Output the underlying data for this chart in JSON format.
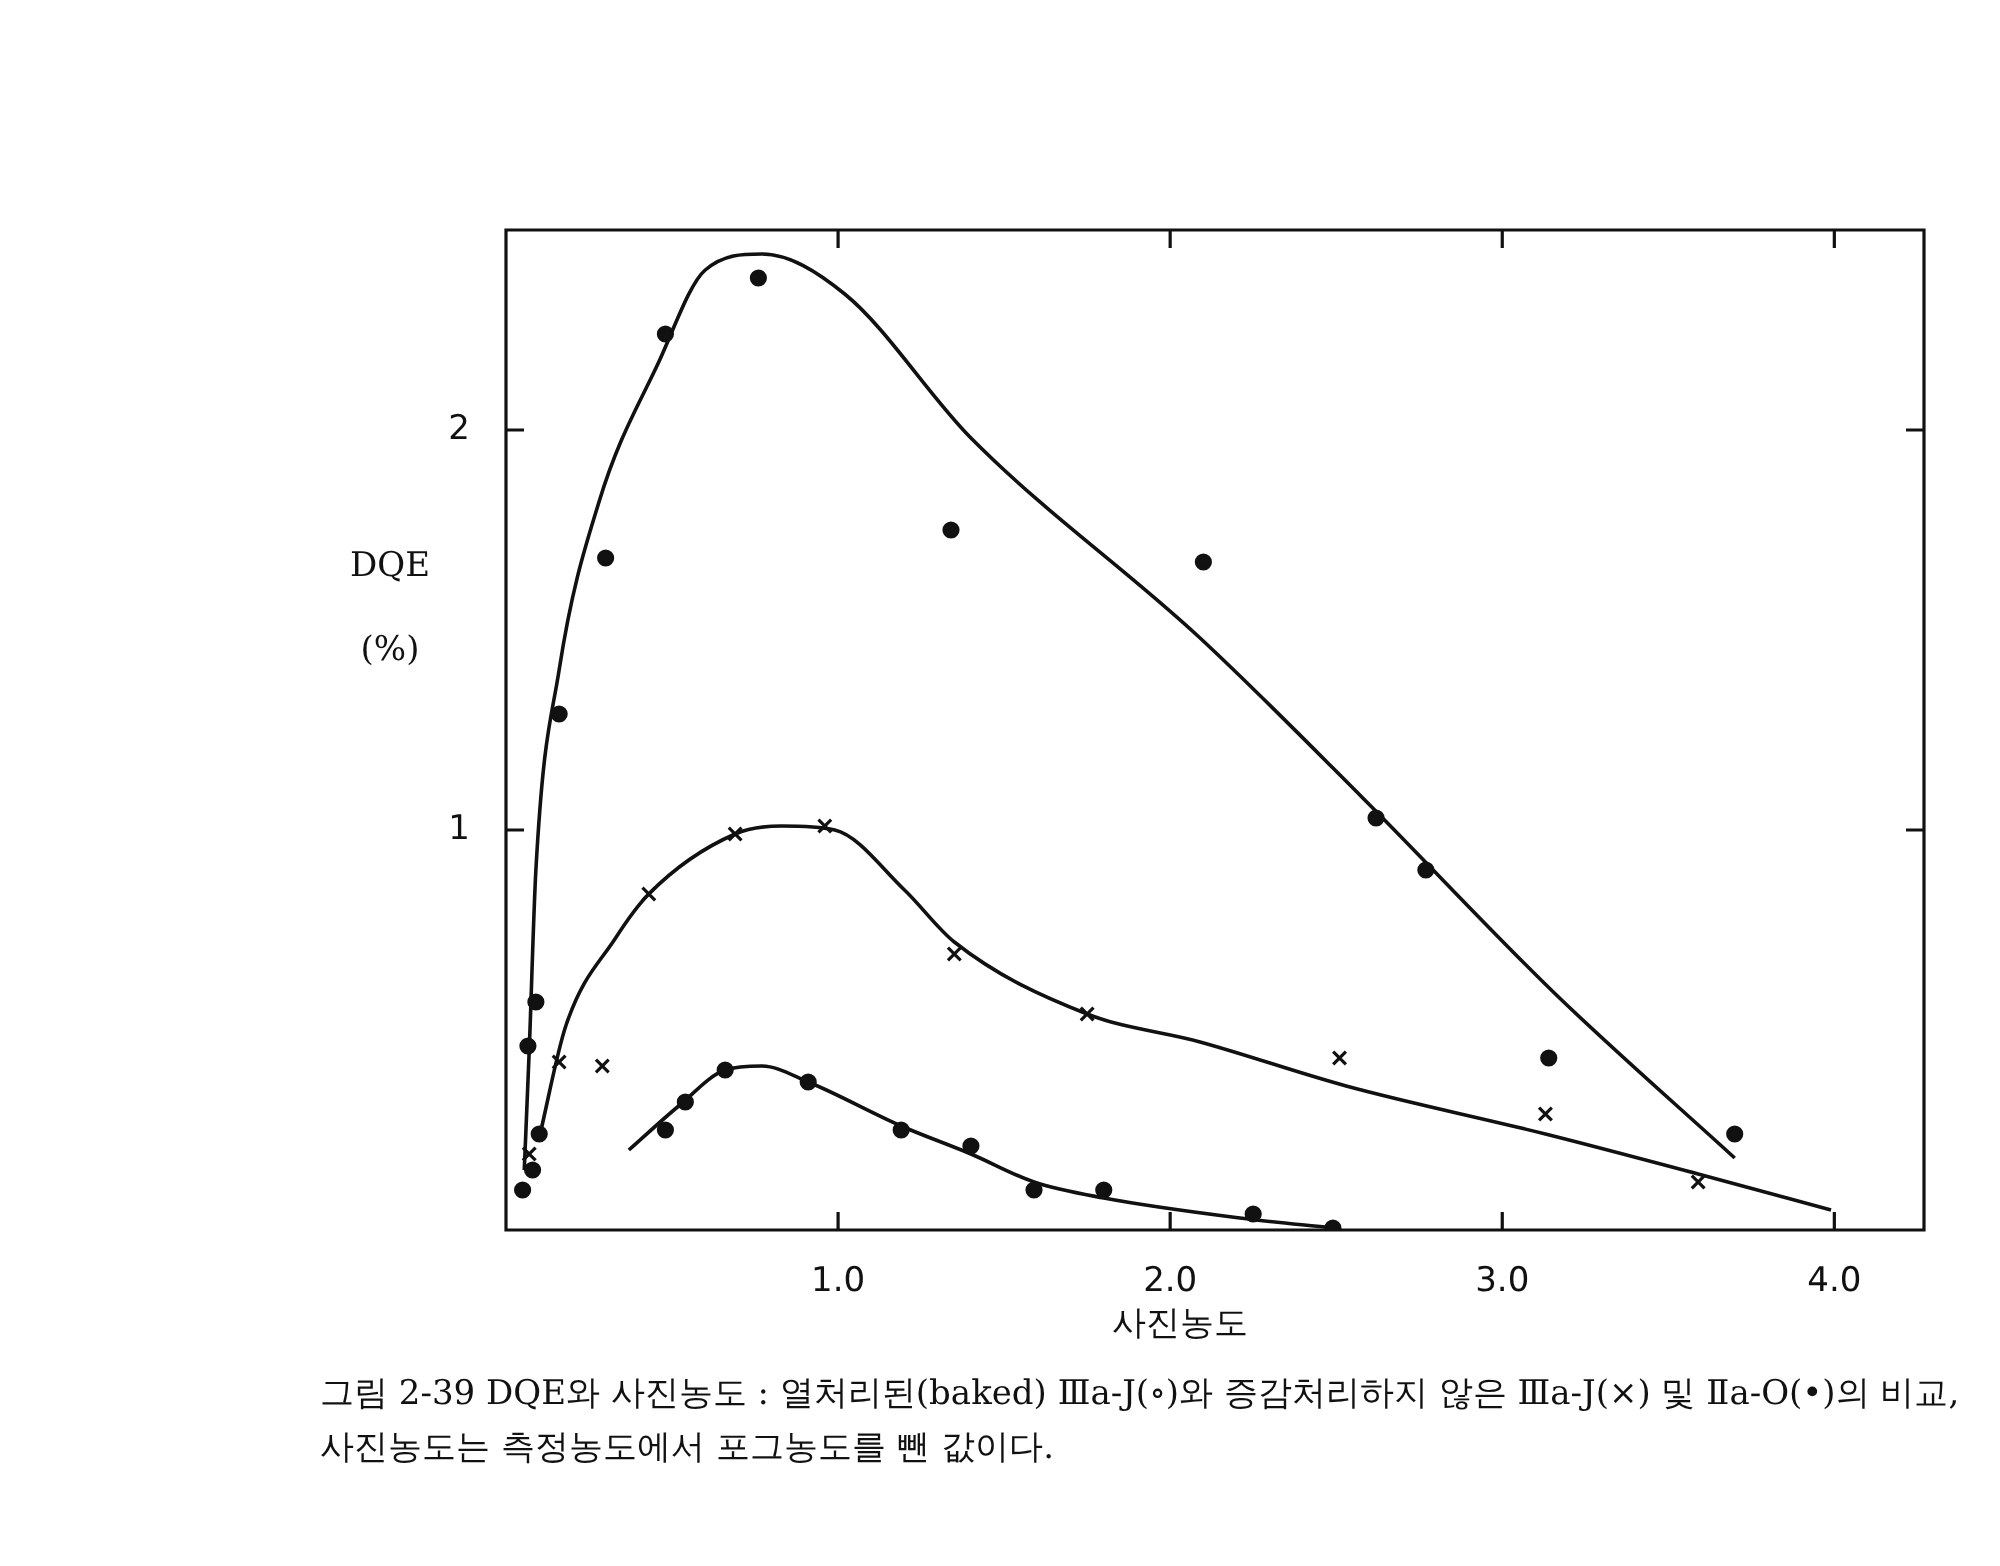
{
  "chart_data": {
    "type": "scatter",
    "xlabel": "사진농도",
    "ylabel": "DQE (%)",
    "xlim": [
      0,
      4.27
    ],
    "ylim": [
      0,
      2.5
    ],
    "xticks": [
      {
        "value": 1,
        "label": "1.0"
      },
      {
        "value": 2,
        "label": "2.0"
      },
      {
        "value": 3,
        "label": "3.0"
      },
      {
        "value": 4,
        "label": "4.0"
      }
    ],
    "yticks": [
      1,
      2
    ],
    "line_style": "solid",
    "series": [
      {
        "marker": "circle",
        "color": "#111111",
        "x": [
          0.066,
          0.09,
          0.16,
          0.3,
          0.48,
          0.76,
          1.34,
          2.1,
          2.62,
          2.77,
          3.14,
          3.7
        ],
        "values": [
          0.46,
          0.57,
          1.29,
          1.68,
          2.24,
          2.38,
          1.75,
          1.67,
          1.03,
          0.9,
          0.43,
          0.24
        ]
      },
      {
        "marker": "cross",
        "color": "#111111",
        "x": [
          0.07,
          0.16,
          0.29,
          0.43,
          0.69,
          0.96,
          1.35,
          1.75,
          2.51,
          3.13,
          3.59
        ],
        "values": [
          0.19,
          0.42,
          0.41,
          0.84,
          0.99,
          1.01,
          0.69,
          0.54,
          0.43,
          0.29,
          0.12
        ]
      },
      {
        "marker": "circle",
        "color": "#111111",
        "x": [
          0.05,
          0.08,
          0.1,
          0.48,
          0.54,
          0.66,
          0.91,
          1.19,
          1.4,
          1.59,
          1.8,
          2.25,
          2.49
        ],
        "values": [
          0.1,
          0.15,
          0.24,
          0.25,
          0.32,
          0.4,
          0.37,
          0.25,
          0.21,
          0.1,
          0.1,
          0.04,
          0.005
        ]
      },
      {
        "type": "line",
        "color": "#111111",
        "x": [
          0.055,
          0.07,
          0.09,
          0.16,
          0.28,
          0.46,
          0.6,
          0.77,
          1.02,
          1.4,
          2.09,
          2.58,
          3.16,
          3.7
        ],
        "values": [
          0.15,
          0.45,
          0.9,
          1.4,
          1.82,
          2.17,
          2.4,
          2.44,
          2.34,
          1.98,
          1.48,
          1.08,
          0.59,
          0.18
        ]
      },
      {
        "type": "line",
        "color": "#111111",
        "x": [
          0.1,
          0.18,
          0.33,
          0.43,
          0.69,
          0.83,
          0.99,
          1.2,
          1.35,
          1.75,
          2.09,
          2.53,
          3.13,
          3.59,
          3.99
        ],
        "values": [
          0.23,
          0.51,
          0.73,
          0.84,
          0.99,
          1.01,
          1.0,
          0.85,
          0.72,
          0.54,
          0.47,
          0.36,
          0.24,
          0.14,
          0.05
        ]
      },
      {
        "type": "line",
        "color": "#111111",
        "x": [
          0.37,
          0.52,
          0.66,
          0.77,
          0.91,
          1.19,
          1.4,
          1.59,
          1.8,
          2.21,
          2.49
        ],
        "values": [
          0.2,
          0.31,
          0.4,
          0.41,
          0.37,
          0.26,
          0.19,
          0.12,
          0.08,
          0.03,
          0.005
        ]
      }
    ],
    "annotations": [
      "그림 2-39  DQE와 사진농도 : 열처리된(baked) Ⅲa-J(∘)와 증감처리하지 않은 Ⅲa-J(×) 및 Ⅱa-O(•)의 비교, 사진농도는 측정농도에서 포그농도를 뺀 값이다."
    ]
  }
}
